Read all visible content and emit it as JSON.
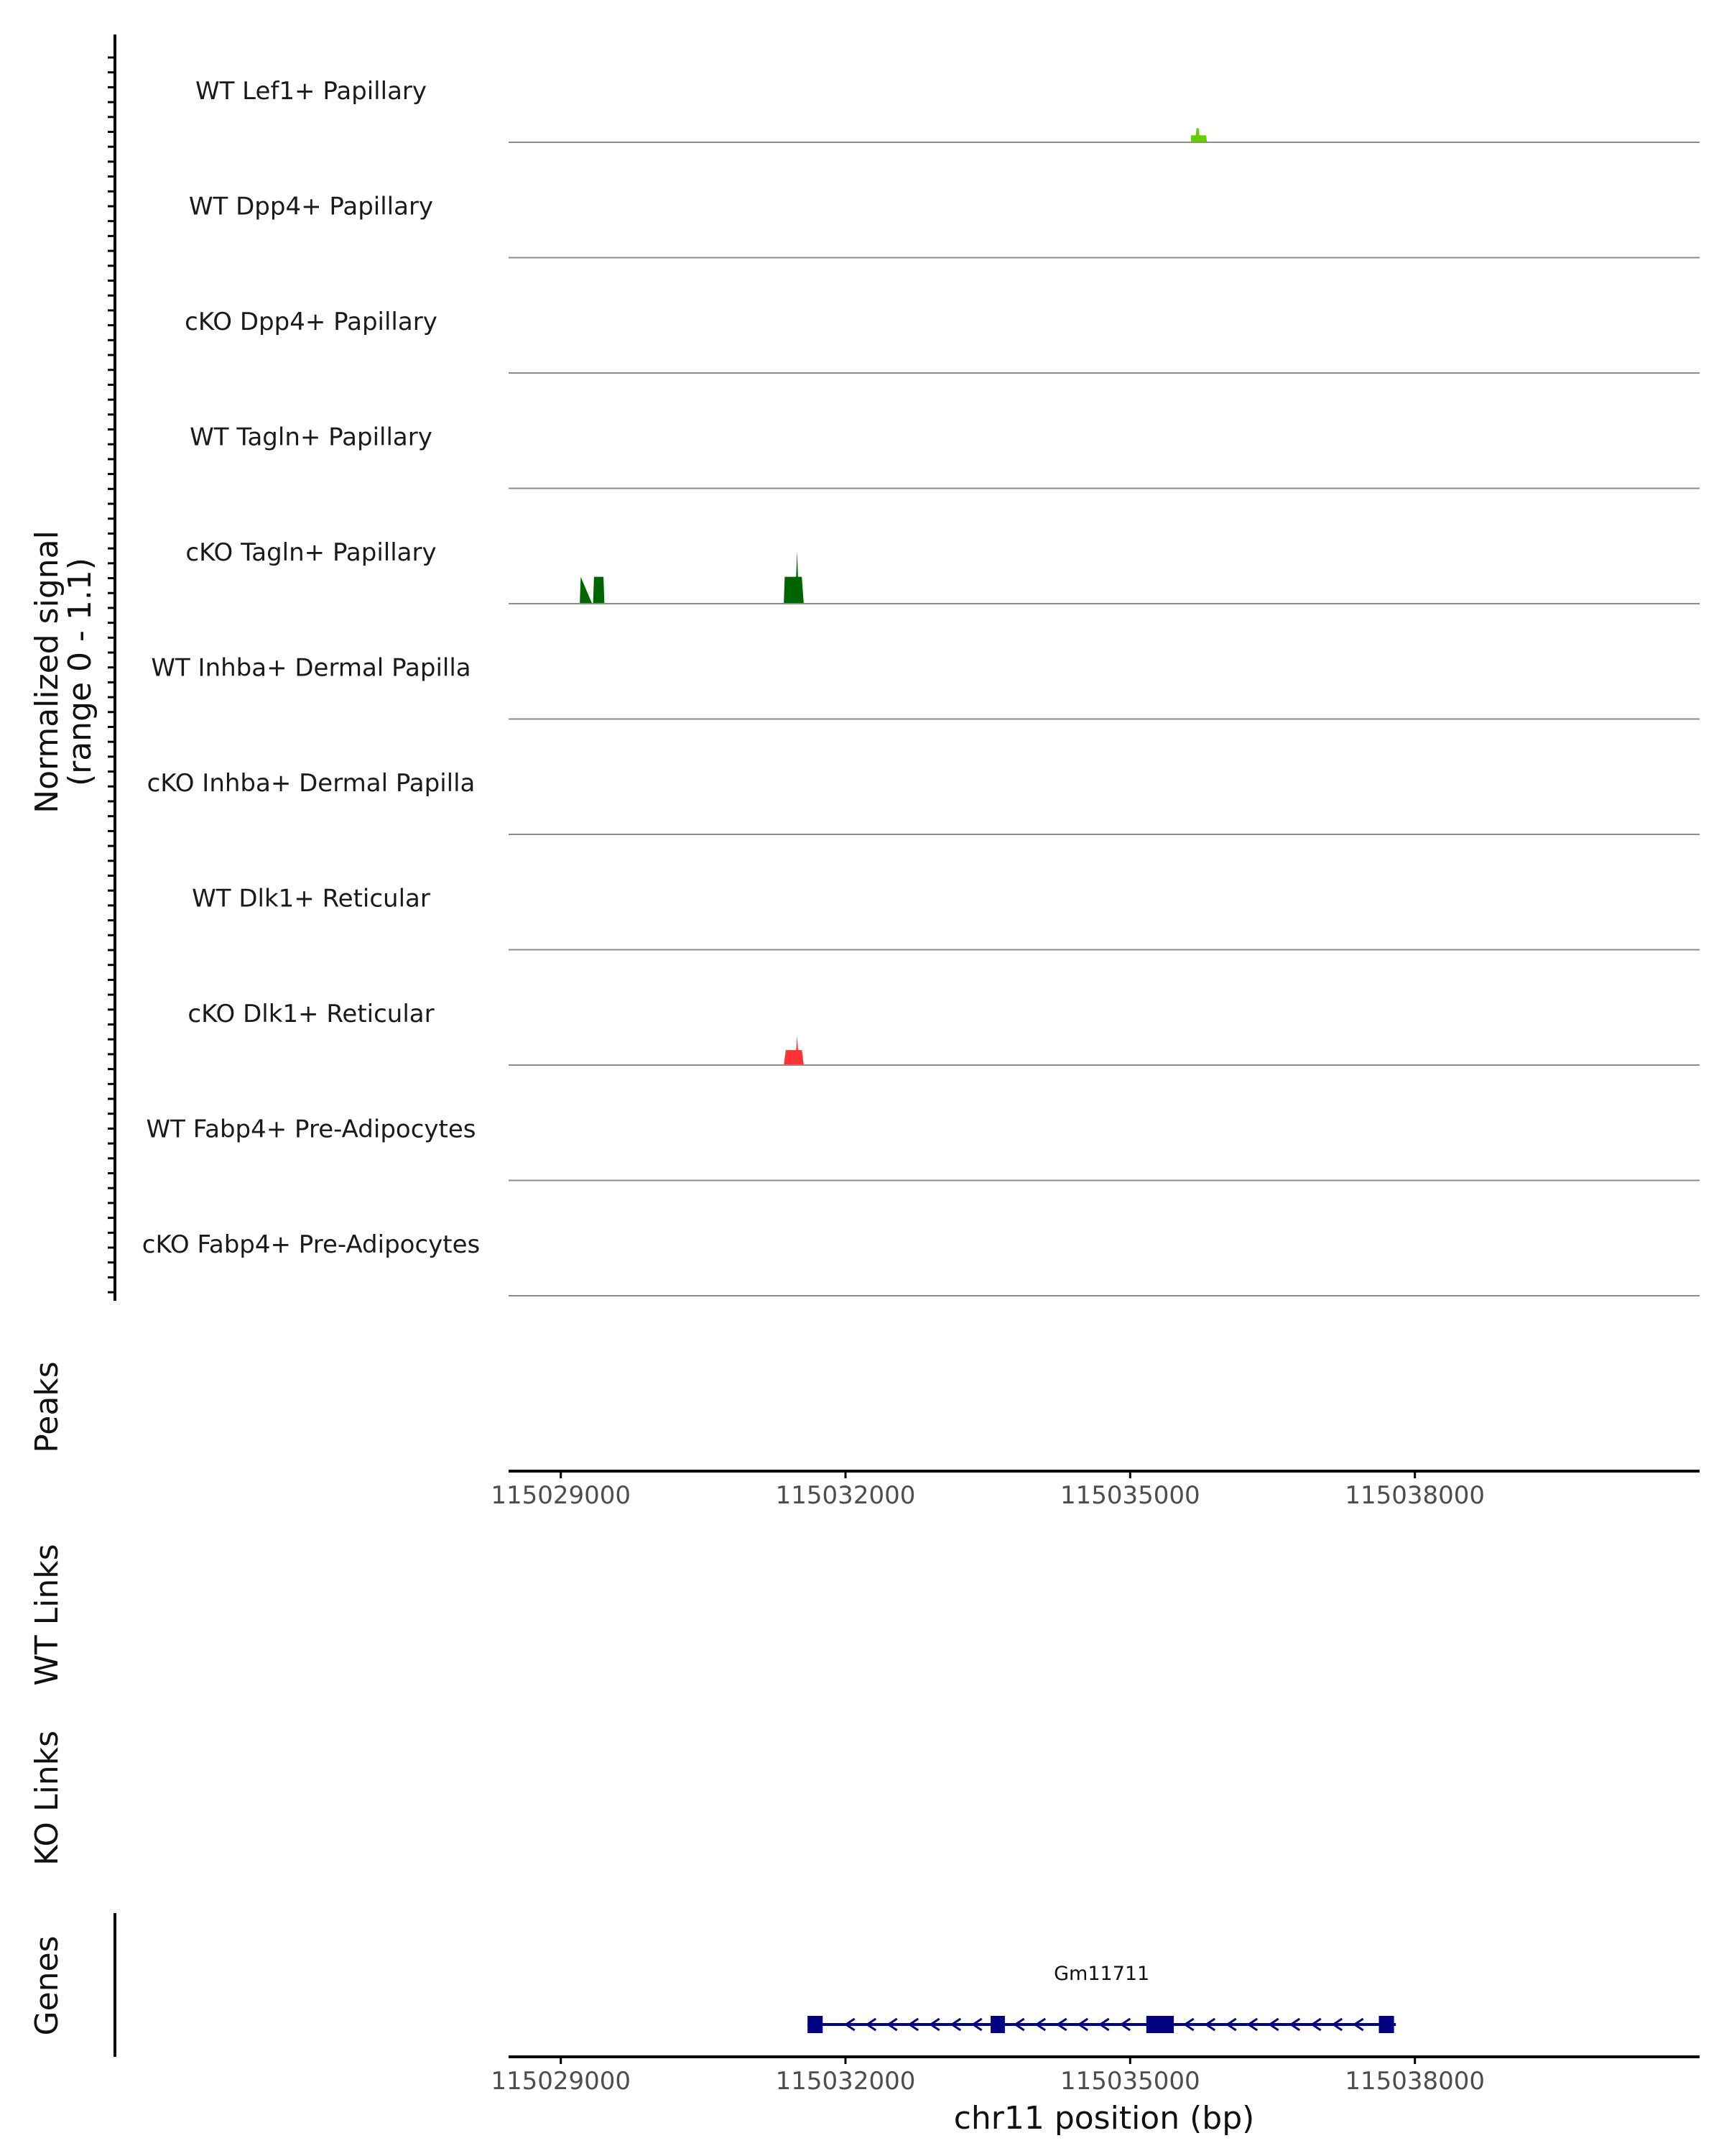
{
  "chart_data": {
    "type": "area",
    "title": "",
    "chromosome": "chr11",
    "xlabel": "chr11 position (bp)",
    "ylabel": "Normalized signal",
    "ylabel_range": "(range 0 - 1.1)",
    "xlim": [
      115028450,
      115041000
    ],
    "ylim": [
      0,
      1.1
    ],
    "x_ticks": [
      115029000,
      115032000,
      115035000,
      115038000
    ],
    "x_tick_labels": [
      "115029000",
      "115032000",
      "115035000",
      "115038000"
    ],
    "coverage_tracks": [
      {
        "name": "WT Lef1+ Papillary",
        "color": "#66cc00",
        "points": [
          [
            115035640,
            0
          ],
          [
            115035640,
            0.22
          ],
          [
            115035690,
            0.22
          ],
          [
            115035700,
            0.44
          ],
          [
            115035720,
            0.44
          ],
          [
            115035730,
            0.22
          ],
          [
            115035800,
            0.22
          ],
          [
            115035810,
            0
          ]
        ]
      },
      {
        "name": "WT Dpp4+ Papillary",
        "color": "#006400",
        "points": []
      },
      {
        "name": "cKO Dpp4+ Papillary",
        "color": "#006400",
        "points": []
      },
      {
        "name": "WT Tagln+ Papillary",
        "color": "#006400",
        "points": []
      },
      {
        "name": "cKO Tagln+ Papillary",
        "color": "#006400",
        "points": [
          [
            115029180,
            0
          ],
          [
            115029200,
            0
          ],
          [
            115029210,
            0.84
          ],
          [
            115029330,
            0
          ],
          [
            115029340,
            0
          ],
          [
            115029350,
            0.84
          ],
          [
            115029450,
            0.84
          ],
          [
            115029460,
            0
          ],
          [
            115031350,
            0
          ],
          [
            115031360,
            0.84
          ],
          [
            115031480,
            0.84
          ],
          [
            115031490,
            1.65
          ],
          [
            115031500,
            0.84
          ],
          [
            115031540,
            0.84
          ],
          [
            115031560,
            0
          ]
        ]
      },
      {
        "name": "WT Inhba+ Dermal Papilla",
        "color": "#006400",
        "points": []
      },
      {
        "name": "cKO Inhba+ Dermal Papilla",
        "color": "#006400",
        "points": []
      },
      {
        "name": "WT Dlk1+ Reticular",
        "color": "#ff3333",
        "points": []
      },
      {
        "name": "cKO Dlk1+ Reticular",
        "color": "#ff3333",
        "points": [
          [
            115031350,
            0
          ],
          [
            115031370,
            0.47
          ],
          [
            115031480,
            0.47
          ],
          [
            115031490,
            0.93
          ],
          [
            115031500,
            0.47
          ],
          [
            115031540,
            0.47
          ],
          [
            115031560,
            0
          ]
        ]
      },
      {
        "name": "WT Fabp4+ Pre-Adipocytes",
        "color": "#ff3333",
        "points": []
      },
      {
        "name": "cKO Fabp4+ Pre-Adipocytes",
        "color": "#ff3333",
        "points": []
      }
    ],
    "side_panels": {
      "peaks": "Peaks",
      "wt_links": "WT Links",
      "ko_links": "KO Links",
      "genes": "Genes"
    },
    "genes": [
      {
        "name": "Gm11711",
        "start": 115031600,
        "end": 115037800,
        "strand": "-",
        "exons": [
          [
            115031600,
            115031760
          ],
          [
            115033530,
            115033680
          ],
          [
            115035170,
            115035460
          ],
          [
            115037620,
            115037780
          ]
        ]
      }
    ],
    "colors": {
      "gene": "#000080",
      "baseline": "#8c8c8c",
      "axis": "#000000"
    }
  }
}
